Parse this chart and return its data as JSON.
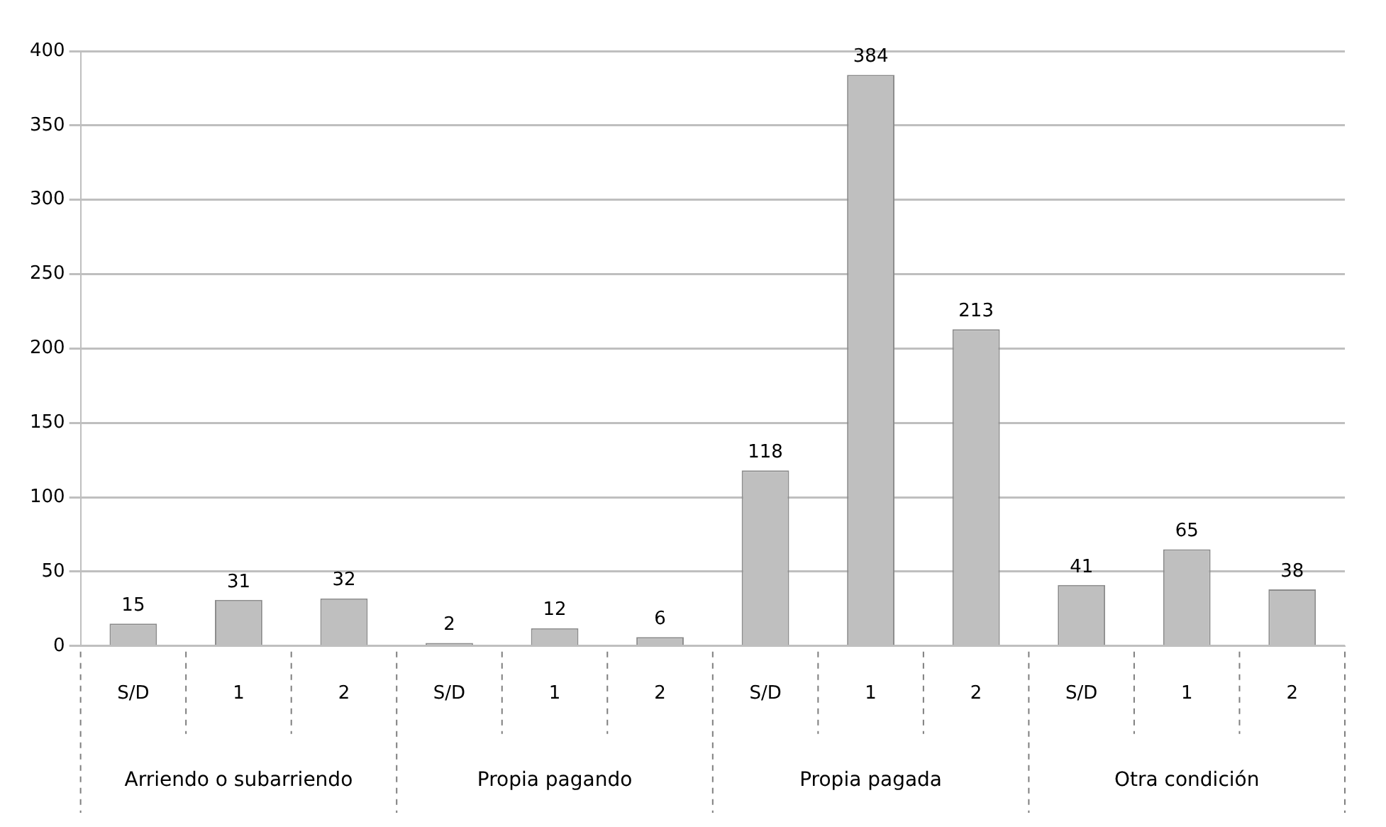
{
  "chart_data": {
    "type": "bar",
    "categories": [
      "S/D",
      "1",
      "2",
      "S/D",
      "1",
      "2",
      "S/D",
      "1",
      "2",
      "S/D",
      "1",
      "2"
    ],
    "values": [
      15,
      31,
      32,
      2,
      12,
      6,
      118,
      384,
      213,
      41,
      65,
      38
    ],
    "color": "#bfbfbf",
    "ylim": [
      0,
      400
    ],
    "yticks": [
      0,
      50,
      100,
      150,
      200,
      250,
      300,
      350,
      400
    ],
    "grid": "y",
    "legend": false,
    "data_labels": true,
    "annotations": [
      "Arriendo o subarriendo",
      "Propia pagando",
      "Propia pagada",
      "Otra condición"
    ]
  }
}
